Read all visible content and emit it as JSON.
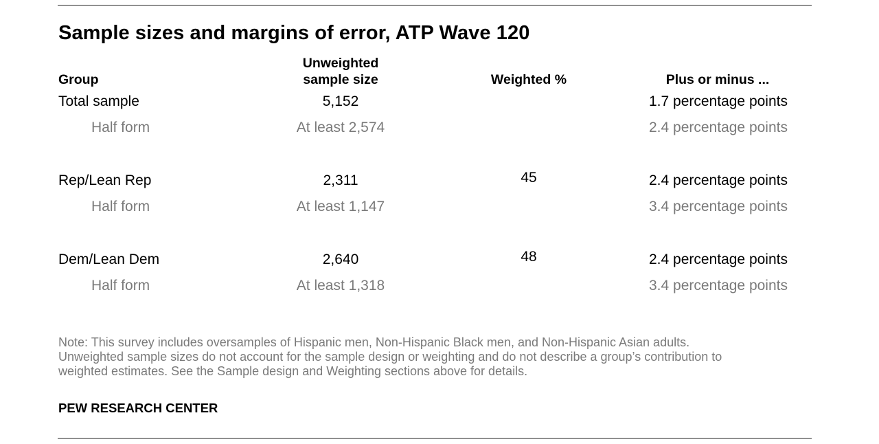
{
  "title": "Sample sizes and margins of error, ATP Wave 120",
  "headers": {
    "group": "Group",
    "unweighted_line1": "Unweighted",
    "unweighted_line2": "sample size",
    "weighted": "Weighted %",
    "moe": "Plus or minus ..."
  },
  "rows": [
    {
      "group": "Total sample",
      "n": "5,152",
      "weighted": "",
      "moe": "1.7 percentage points"
    },
    {
      "group": "Half form",
      "n": "At least 2,574",
      "weighted": "",
      "moe": "2.4 percentage points"
    },
    {
      "group": "Rep/Lean Rep",
      "n": "2,311",
      "weighted": "45",
      "moe": "2.4 percentage points"
    },
    {
      "group": "Half form",
      "n": "At least 1,147",
      "weighted": "",
      "moe": "3.4 percentage points"
    },
    {
      "group": "Dem/Lean Dem",
      "n": "2,640",
      "weighted": "48",
      "moe": "2.4 percentage points"
    },
    {
      "group": "Half form",
      "n": "At least 1,318",
      "weighted": "",
      "moe": "3.4 percentage points"
    }
  ],
  "note": {
    "line1": "Note: This survey includes oversamples of Hispanic men, Non-Hispanic Black men, and Non-Hispanic Asian adults.",
    "line2": "Unweighted sample sizes do not account for the sample design or weighting and do not describe a group’s contribution to",
    "line3": "weighted estimates. See the Sample design and Weighting sections above for details."
  },
  "source": "PEW RESEARCH CENTER",
  "colors": {
    "text": "#000000",
    "muted": "#7a7a7a",
    "rule": "#222222"
  }
}
